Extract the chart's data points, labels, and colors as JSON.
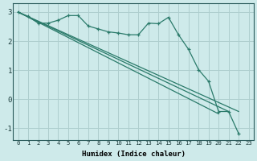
{
  "xlabel": "Humidex (Indice chaleur)",
  "bg_color": "#ceeaea",
  "grid_color": "#aecece",
  "line_color": "#2a7a6a",
  "xlim": [
    -0.5,
    23.5
  ],
  "ylim": [
    -1.4,
    3.3
  ],
  "xticks": [
    0,
    1,
    2,
    3,
    4,
    5,
    6,
    7,
    8,
    9,
    10,
    11,
    12,
    13,
    14,
    15,
    16,
    17,
    18,
    19,
    20,
    21,
    22,
    23
  ],
  "yticks": [
    -1,
    0,
    1,
    2,
    3
  ],
  "wavy_line": [
    3.0,
    2.85,
    2.62,
    2.62,
    2.72,
    2.88,
    2.88,
    2.52,
    2.42,
    2.32,
    2.28,
    2.22,
    2.22,
    2.62,
    2.6,
    2.82,
    2.22,
    1.72,
    1.02,
    0.62,
    -0.42,
    -0.42,
    -1.18,
    null
  ],
  "straight_lines": [
    [
      [
        0,
        3.0
      ],
      [
        22,
        -0.42
      ]
    ],
    [
      [
        0,
        3.0
      ],
      [
        21,
        -0.42
      ]
    ],
    [
      [
        0,
        3.0
      ],
      [
        20,
        -0.5
      ]
    ]
  ],
  "marker": "+"
}
